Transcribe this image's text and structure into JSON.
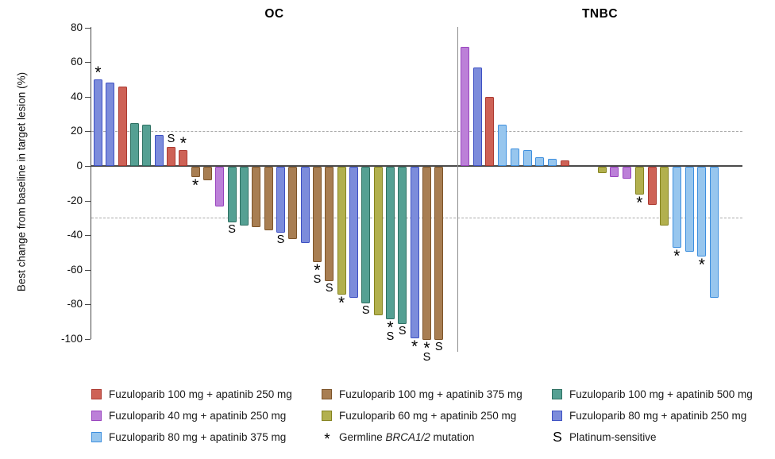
{
  "chart_data": {
    "type": "bar",
    "variant": "waterfall",
    "title": "",
    "xlabel": "",
    "ylabel": "Best change from baseline in target lesion (%)",
    "ylim": [
      -100,
      80
    ],
    "y_ticks": [
      80,
      60,
      40,
      20,
      0,
      -20,
      -40,
      -60,
      -80,
      -100
    ],
    "reference_lines": [
      20,
      -30
    ],
    "grid": false,
    "legend_position": "bottom",
    "colors": {
      "red": {
        "fill": "#CE6256",
        "edge": "#AC3A31"
      },
      "brown": {
        "fill": "#A87E52",
        "edge": "#7D5429"
      },
      "teal": {
        "fill": "#55A093",
        "edge": "#2F7163"
      },
      "purple": {
        "fill": "#BC80D8",
        "edge": "#9843BE"
      },
      "olive": {
        "fill": "#B2B04E",
        "edge": "#85831F"
      },
      "periwinkle": {
        "fill": "#7C8CDB",
        "edge": "#3D50C3"
      },
      "lightblue": {
        "fill": "#97C6EE",
        "edge": "#3E8FDE"
      }
    },
    "symbol_meanings": {
      "*": "Germline BRCA1/2 mutation",
      "S": "Platinum-sensitive"
    },
    "panels": [
      {
        "title": "OC",
        "bars": [
          {
            "value": 50,
            "color": "periwinkle",
            "symbol": "*"
          },
          {
            "value": 48,
            "color": "periwinkle"
          },
          {
            "value": 46,
            "color": "red"
          },
          {
            "value": 25,
            "color": "teal"
          },
          {
            "value": 24,
            "color": "teal"
          },
          {
            "value": 18,
            "color": "periwinkle"
          },
          {
            "value": 11,
            "color": "red",
            "symbol": "S"
          },
          {
            "value": 9,
            "color": "red",
            "symbol": "*"
          },
          {
            "value": -6,
            "color": "brown",
            "symbol": "*"
          },
          {
            "value": -8,
            "color": "brown"
          },
          {
            "value": -23,
            "color": "purple"
          },
          {
            "value": -32,
            "color": "teal",
            "symbol": "S"
          },
          {
            "value": -34,
            "color": "teal"
          },
          {
            "value": -35,
            "color": "brown"
          },
          {
            "value": -37,
            "color": "brown"
          },
          {
            "value": -38,
            "color": "periwinkle",
            "symbol": "S"
          },
          {
            "value": -42,
            "color": "brown"
          },
          {
            "value": -44,
            "color": "periwinkle"
          },
          {
            "value": -55,
            "color": "brown",
            "symbol": "*S"
          },
          {
            "value": -66,
            "color": "brown",
            "symbol": "S"
          },
          {
            "value": -74,
            "color": "olive",
            "symbol": "*"
          },
          {
            "value": -76,
            "color": "periwinkle"
          },
          {
            "value": -79,
            "color": "teal",
            "symbol": "S"
          },
          {
            "value": -86,
            "color": "olive"
          },
          {
            "value": -88,
            "color": "teal",
            "symbol": "*S"
          },
          {
            "value": -91,
            "color": "teal",
            "symbol": "S"
          },
          {
            "value": -99,
            "color": "periwinkle",
            "symbol": "*"
          },
          {
            "value": -100,
            "color": "brown",
            "symbol": "*S"
          },
          {
            "value": -100,
            "color": "brown",
            "symbol": "S"
          }
        ]
      },
      {
        "title": "TNBC",
        "bars": [
          {
            "value": 69,
            "color": "purple"
          },
          {
            "value": 57,
            "color": "periwinkle"
          },
          {
            "value": 40,
            "color": "red"
          },
          {
            "value": 24,
            "color": "lightblue"
          },
          {
            "value": 10,
            "color": "lightblue"
          },
          {
            "value": 9,
            "color": "lightblue"
          },
          {
            "value": 5,
            "color": "lightblue"
          },
          {
            "value": 4,
            "color": "lightblue"
          },
          {
            "value": 3,
            "color": "red"
          },
          {
            "value": 0,
            "color": null
          },
          {
            "value": 0,
            "color": null
          },
          {
            "value": -4,
            "color": "olive"
          },
          {
            "value": -6,
            "color": "purple"
          },
          {
            "value": -7,
            "color": "purple"
          },
          {
            "value": -16,
            "color": "olive",
            "symbol": "*"
          },
          {
            "value": -22,
            "color": "red"
          },
          {
            "value": -34,
            "color": "olive"
          },
          {
            "value": -47,
            "color": "lightblue",
            "symbol": "*"
          },
          {
            "value": -49,
            "color": "lightblue"
          },
          {
            "value": -52,
            "color": "lightblue",
            "symbol": "*"
          },
          {
            "value": -76,
            "color": "lightblue"
          }
        ]
      }
    ],
    "legend": {
      "columns": [
        {
          "items": [
            {
              "type": "swatch",
              "color": "red",
              "label": "Fuzuloparib 100 mg + apatinib 250 mg"
            },
            {
              "type": "swatch",
              "color": "purple",
              "label": "Fuzuloparib 40 mg + apatinib 250 mg"
            },
            {
              "type": "swatch",
              "color": "lightblue",
              "label": "Fuzuloparib 80 mg + apatinib 375 mg"
            }
          ]
        },
        {
          "items": [
            {
              "type": "swatch",
              "color": "brown",
              "label": "Fuzuloparib 100 mg + apatinib 375 mg"
            },
            {
              "type": "swatch",
              "color": "olive",
              "label": "Fuzuloparib 60 mg + apatinib 250 mg"
            },
            {
              "type": "symbol",
              "symbol": "*",
              "label_prefix": "Germline ",
              "label_italic": "BRCA1/2",
              "label_suffix": " mutation"
            }
          ]
        },
        {
          "items": [
            {
              "type": "swatch",
              "color": "teal",
              "label": "Fuzuloparib 100 mg + apatinib 500 mg"
            },
            {
              "type": "swatch",
              "color": "periwinkle",
              "label": "Fuzuloparib 80 mg + apatinib 250 mg"
            },
            {
              "type": "symbol",
              "symbol": "S",
              "label": "Platinum-sensitive"
            }
          ]
        }
      ]
    }
  }
}
